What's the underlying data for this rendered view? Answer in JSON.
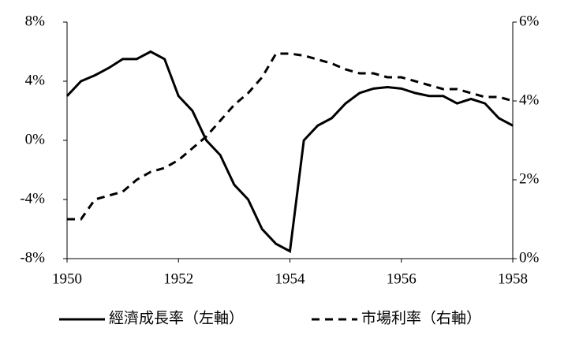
{
  "chart_data": {
    "type": "line",
    "x": [
      1950,
      1950.25,
      1950.5,
      1950.75,
      1951,
      1951.25,
      1951.5,
      1951.75,
      1952,
      1952.25,
      1952.5,
      1952.75,
      1953,
      1953.25,
      1953.5,
      1953.75,
      1954,
      1954.25,
      1954.5,
      1954.75,
      1955,
      1955.25,
      1955.5,
      1955.75,
      1956,
      1956.25,
      1956.5,
      1956.75,
      1957,
      1957.25,
      1957.5,
      1957.75,
      1958
    ],
    "series": [
      {
        "name": "經濟成長率（左軸）",
        "color": "#000000",
        "line_style": "solid",
        "values": [
          3.0,
          4.0,
          4.4,
          4.9,
          5.5,
          5.5,
          6.0,
          5.5,
          3.0,
          2.0,
          0.0,
          -1.0,
          -3.0,
          -4.0,
          -6.0,
          -7.0,
          -7.5,
          0.0,
          1.0,
          1.5,
          2.5,
          3.2,
          3.5,
          3.6,
          3.5,
          3.2,
          3.0,
          3.0,
          2.5,
          2.8,
          2.5,
          1.5,
          1.0
        ]
      },
      {
        "name": "市場利率（右軸）",
        "color": "#000000",
        "line_style": "dashed",
        "axis": "y2",
        "values": [
          1.0,
          1.0,
          1.5,
          1.6,
          1.7,
          2.0,
          2.2,
          2.3,
          2.5,
          2.8,
          3.1,
          3.5,
          3.9,
          4.2,
          4.6,
          5.2,
          5.2,
          5.15,
          5.05,
          4.95,
          4.8,
          4.7,
          4.7,
          4.6,
          4.6,
          4.5,
          4.4,
          4.3,
          4.3,
          4.2,
          4.1,
          4.1,
          4.0
        ]
      }
    ],
    "xlim": [
      1950,
      1958
    ],
    "xticks": [
      1950,
      1952,
      1954,
      1956,
      1958
    ],
    "ylim": [
      -8,
      8
    ],
    "yticks": [
      {
        "value": -8,
        "label": "-8%"
      },
      {
        "value": -4,
        "label": "-4%"
      },
      {
        "value": 0,
        "label": "0%"
      },
      {
        "value": 4,
        "label": "4%"
      },
      {
        "value": 8,
        "label": "8%"
      }
    ],
    "y2lim": [
      0,
      6
    ],
    "y2ticks": [
      {
        "value": 0,
        "label": "0%"
      },
      {
        "value": 2,
        "label": "2%"
      },
      {
        "value": 4,
        "label": "4%"
      },
      {
        "value": 6,
        "label": "6%"
      }
    ],
    "grid": false,
    "legend": "bottom"
  }
}
